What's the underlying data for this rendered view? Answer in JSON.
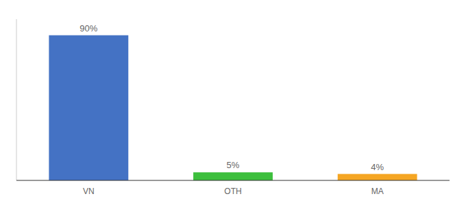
{
  "chart_data": {
    "type": "bar",
    "categories": [
      "VN",
      "OTH",
      "MA"
    ],
    "values": [
      90,
      5,
      4
    ],
    "value_labels": [
      "90%",
      "5%",
      "4%"
    ],
    "colors": [
      "#4472c4",
      "#3dbf3d",
      "#f5a623"
    ],
    "ylim": [
      0,
      100
    ],
    "grid": false,
    "data_labels": true,
    "tick_labels": "x"
  }
}
